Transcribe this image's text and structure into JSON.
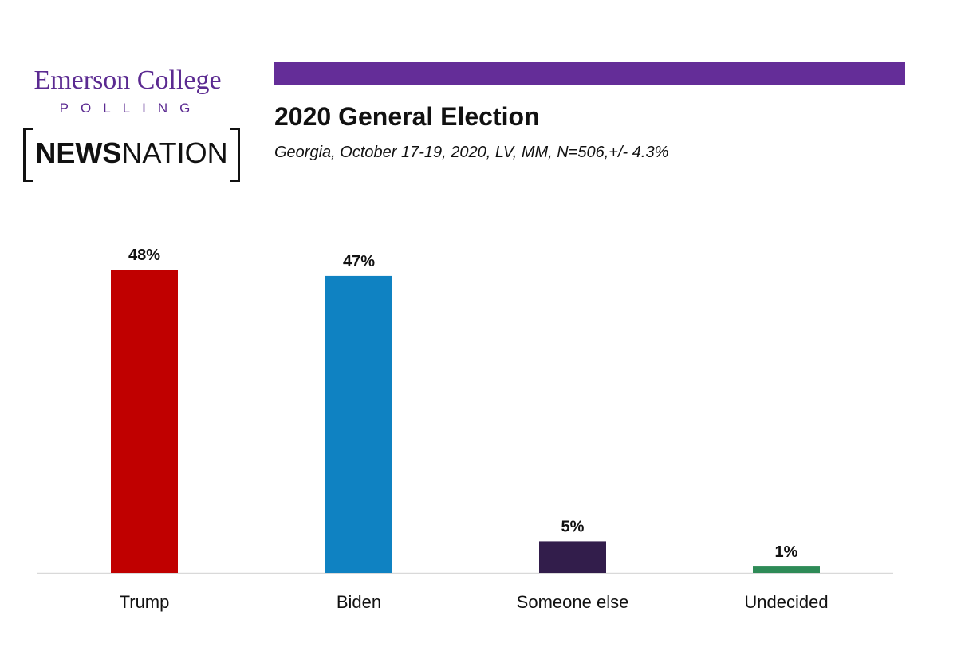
{
  "header": {
    "emerson_line1": "Emerson College",
    "emerson_line2": "POLLING",
    "newsnation_bold": "NEWS",
    "newsnation_regular": "NATION",
    "title": "2020 General Election",
    "subtitle": "Georgia, October 17-19, 2020, LV, MM, N=506,+/-  4.3%",
    "bar_color": "#642d98"
  },
  "chart_data": {
    "type": "bar",
    "title": "2020 General Election",
    "subtitle": "Georgia, October 17-19, 2020, LV, MM, N=506,+/-  4.3%",
    "xlabel": "",
    "ylabel": "",
    "categories": [
      "Trump",
      "Biden",
      "Someone else",
      "Undecided"
    ],
    "values": [
      48,
      47,
      5,
      1
    ],
    "data_labels": [
      "48%",
      "47%",
      "5%",
      "1%"
    ],
    "colors": [
      "#c00000",
      "#0f82c2",
      "#321d4b",
      "#2e8b57"
    ],
    "ylim": [
      0,
      48
    ],
    "grid": false,
    "legend": "none"
  }
}
